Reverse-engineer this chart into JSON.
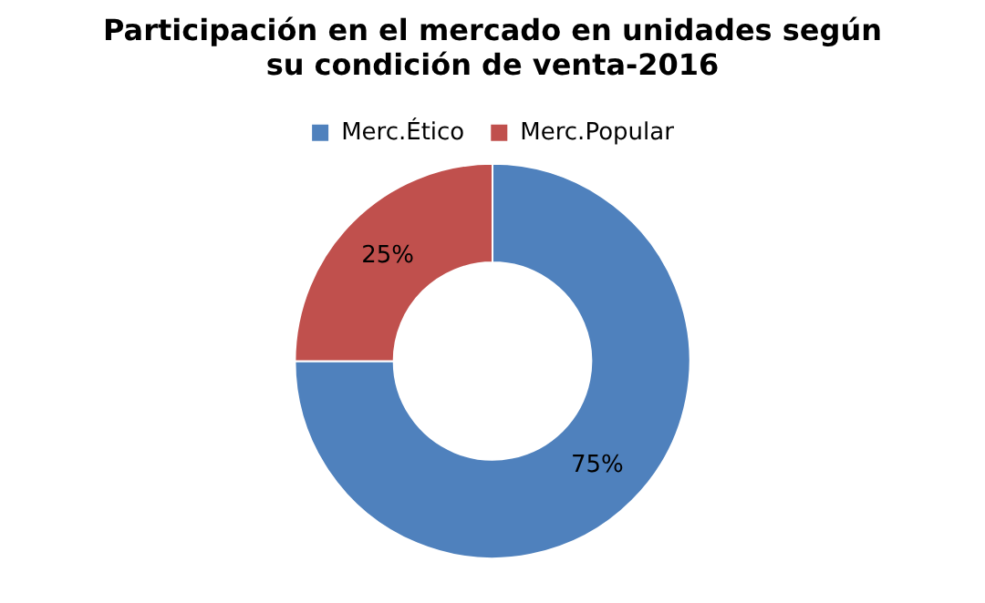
{
  "chart_data": {
    "type": "donut",
    "title": "Participación en el mercado en unidades según su condición de venta-2016",
    "categories": [
      "Merc.Ético",
      "Merc.Popular"
    ],
    "values": [
      75,
      25
    ],
    "colors": [
      "#4f81bd",
      "#c0504d"
    ],
    "value_labels": [
      "75%",
      "25%"
    ],
    "legend": "top"
  }
}
